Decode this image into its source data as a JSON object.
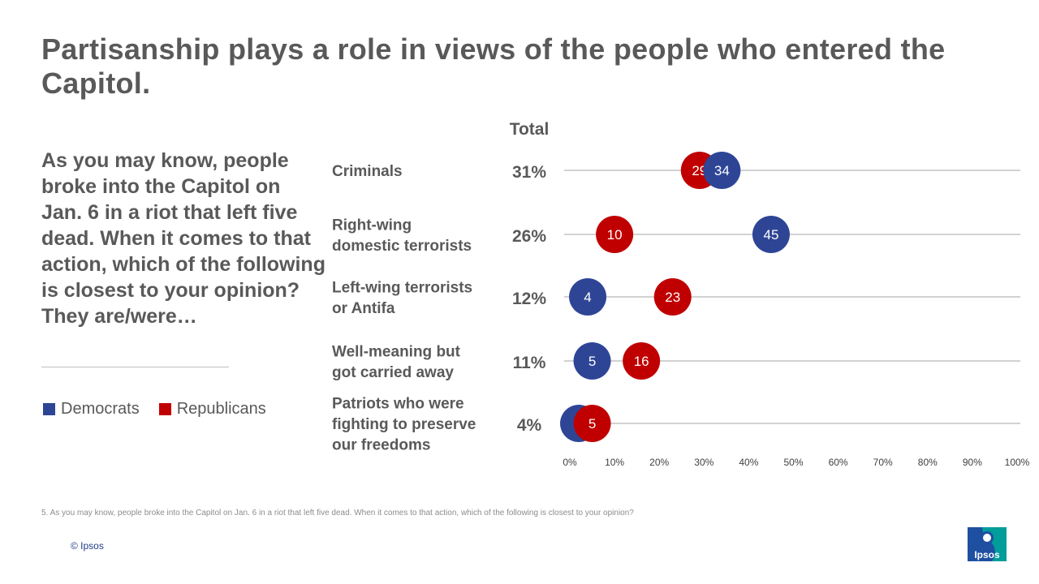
{
  "title": "Partisanship plays a role in views of the people who entered the Capitol.",
  "question": "As you may know, people broke into the Capitol on Jan. 6 in a riot that left five dead. When it comes to that action, which of the following is closest to your opinion? They are/were…",
  "legend": [
    {
      "name": "Democrats",
      "color": "#2e4596"
    },
    {
      "name": "Republicans",
      "color": "#c00000"
    }
  ],
  "total_header": "Total",
  "footnote": "5. As you may know, people broke into the Capitol on Jan. 6 in a riot that left five dead. When it comes to that action, which of the following is closest to your opinion?",
  "copyright": "© Ipsos",
  "logo": {
    "text": "Ipsos",
    "color_blue": "#1f4fa0",
    "color_teal": "#009d9a"
  },
  "chart_data": {
    "type": "dot",
    "xlim": [
      0,
      100
    ],
    "x_ticks": [
      "0%",
      "10%",
      "20%",
      "30%",
      "40%",
      "50%",
      "60%",
      "70%",
      "80%",
      "90%",
      "100%"
    ],
    "categories": [
      "Criminals",
      "Right-wing domestic terrorists",
      "Left-wing terrorists or Antifa",
      "Well-meaning but got carried away",
      "Patriots who were fighting to preserve our freedoms"
    ],
    "category_lines": [
      [
        "Criminals"
      ],
      [
        "Right-wing",
        "domestic terrorists"
      ],
      [
        "Left-wing terrorists",
        "or Antifa"
      ],
      [
        "Well-meaning but",
        "got carried away"
      ],
      [
        "Patriots who were",
        "fighting to preserve",
        "our freedoms"
      ]
    ],
    "totals": [
      "31%",
      "26%",
      "12%",
      "11%",
      "4%"
    ],
    "series": [
      {
        "name": "Democrats",
        "color": "#2e4596",
        "values": [
          34,
          45,
          4,
          5,
          2
        ]
      },
      {
        "name": "Republicans",
        "color": "#c00000",
        "values": [
          29,
          10,
          23,
          16,
          5
        ]
      }
    ],
    "draw_order": [
      [
        "Republicans",
        "Democrats"
      ],
      [
        "Republicans",
        "Democrats"
      ],
      [
        "Democrats",
        "Republicans"
      ],
      [
        "Democrats",
        "Republicans"
      ],
      [
        "Democrats",
        "Republicans"
      ]
    ]
  }
}
